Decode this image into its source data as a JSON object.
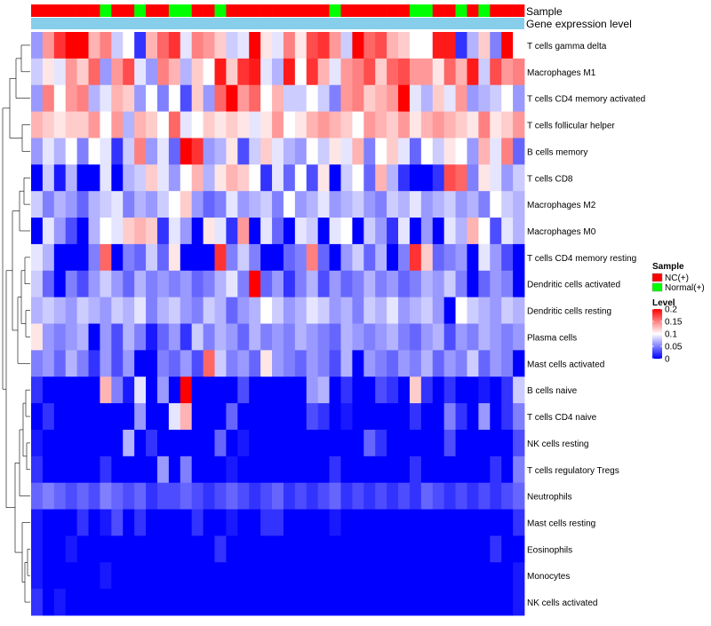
{
  "chart_data": {
    "type": "heatmap",
    "title": "",
    "annotations": {
      "sample_label": "Sample",
      "gene_label": "Gene expression level",
      "sample_groups": [
        "NC(+)",
        "NC(+)",
        "NC(+)",
        "NC(+)",
        "NC(+)",
        "NC(+)",
        "Normal(+)",
        "NC(+)",
        "NC(+)",
        "Normal(+)",
        "NC(+)",
        "NC(+)",
        "Normal(+)",
        "Normal(+)",
        "NC(+)",
        "NC(+)",
        "Normal(+)",
        "NC(+)",
        "NC(+)",
        "NC(+)",
        "NC(+)",
        "NC(+)",
        "NC(+)",
        "NC(+)",
        "NC(+)",
        "NC(+)",
        "Normal(+)",
        "NC(+)",
        "NC(+)",
        "NC(+)",
        "NC(+)",
        "NC(+)",
        "NC(+)",
        "Normal(+)",
        "Normal(+)",
        "NC(+)",
        "NC(+)",
        "Normal(+)",
        "NC(+)",
        "Normal(+)",
        "NC(+)",
        "NC(+)",
        "NC(+)"
      ],
      "gene_group_color": "#87CEEB"
    },
    "rows": [
      "T cells gamma delta",
      "Macrophages M1",
      "T cells CD4 memory activated",
      "T cells follicular helper",
      "B cells memory",
      "T cells CD8",
      "Macrophages M2",
      "Macrophages M0",
      "T cells CD4 memory resting",
      "Dendritic cells activated",
      "Dendritic cells resting",
      "Plasma cells",
      "Mast cells activated",
      "B cells naive",
      "T cells CD4 naive",
      "NK cells resting",
      "T cells regulatory  Tregs",
      "Neutrophils",
      "Mast cells resting",
      "Eosinophils",
      "Monocytes",
      "NK cells activated"
    ],
    "n_columns": 43,
    "values": [
      [
        0.06,
        0.14,
        0.18,
        0.2,
        0.2,
        0.13,
        0.15,
        0.08,
        0.1,
        0.02,
        0.13,
        0.16,
        0.18,
        0.09,
        0.15,
        0.14,
        0.12,
        0.08,
        0.09,
        0.2,
        0.11,
        0.09,
        0.15,
        0.11,
        0.17,
        0.18,
        0.14,
        0.08,
        0.2,
        0.16,
        0.17,
        0.13,
        0.12,
        0.1,
        0.1,
        0.19,
        0.19,
        0.02,
        0.07,
        0.12,
        0.05,
        0.2,
        0.1
      ],
      [
        0.08,
        0.11,
        0.09,
        0.14,
        0.12,
        0.16,
        0.06,
        0.14,
        0.17,
        0.09,
        0.06,
        0.15,
        0.13,
        0.07,
        0.12,
        0.1,
        0.19,
        0.12,
        0.18,
        0.19,
        0.09,
        0.07,
        0.19,
        0.1,
        0.18,
        0.13,
        0.09,
        0.14,
        0.15,
        0.17,
        0.12,
        0.16,
        0.17,
        0.14,
        0.14,
        0.11,
        0.16,
        0.13,
        0.19,
        0.08,
        0.17,
        0.14,
        0.15
      ],
      [
        0.06,
        0.15,
        0.1,
        0.14,
        0.15,
        0.07,
        0.09,
        0.13,
        0.12,
        0.06,
        0.1,
        0.05,
        0.1,
        0.03,
        0.12,
        0.06,
        0.16,
        0.2,
        0.14,
        0.16,
        0.1,
        0.13,
        0.08,
        0.08,
        0.1,
        0.08,
        0.05,
        0.14,
        0.15,
        0.12,
        0.13,
        0.14,
        0.2,
        0.09,
        0.07,
        0.12,
        0.09,
        0.14,
        0.06,
        0.07,
        0.08,
        0.1,
        0.06
      ],
      [
        0.13,
        0.12,
        0.11,
        0.12,
        0.12,
        0.14,
        0.1,
        0.14,
        0.07,
        0.13,
        0.12,
        0.1,
        0.16,
        0.09,
        0.1,
        0.12,
        0.11,
        0.12,
        0.11,
        0.09,
        0.11,
        0.14,
        0.1,
        0.11,
        0.13,
        0.14,
        0.13,
        0.12,
        0.1,
        0.14,
        0.13,
        0.12,
        0.14,
        0.11,
        0.13,
        0.14,
        0.13,
        0.12,
        0.11,
        0.15,
        0.11,
        0.12,
        0.14
      ],
      [
        0.06,
        0.09,
        0.07,
        0.1,
        0.05,
        0.1,
        0.09,
        0.02,
        0.08,
        0.15,
        0.06,
        0.09,
        0.04,
        0.2,
        0.18,
        0.06,
        0.07,
        0.11,
        0.03,
        0.08,
        0.12,
        0.09,
        0.07,
        0.06,
        0.1,
        0.08,
        0.11,
        0.09,
        0.13,
        0.05,
        0.1,
        0.12,
        0.09,
        0.04,
        0.1,
        0.08,
        0.11,
        0.1,
        0.06,
        0.13,
        0.09,
        0.15,
        0.04
      ],
      [
        0.0,
        0.08,
        0.01,
        0.07,
        0.0,
        0.0,
        0.09,
        0.0,
        0.07,
        0.08,
        0.12,
        0.09,
        0.06,
        0.1,
        0.13,
        0.07,
        0.11,
        0.13,
        0.12,
        0.1,
        0.02,
        0.09,
        0.04,
        0.1,
        0.03,
        0.11,
        0.0,
        0.08,
        0.1,
        0.04,
        0.13,
        0.07,
        0.02,
        0.0,
        0.0,
        0.02,
        0.17,
        0.16,
        0.05,
        0.11,
        0.09,
        0.06,
        0.08
      ],
      [
        0.08,
        0.05,
        0.07,
        0.06,
        0.04,
        0.07,
        0.08,
        0.09,
        0.05,
        0.07,
        0.06,
        0.08,
        0.1,
        0.12,
        0.06,
        0.04,
        0.05,
        0.09,
        0.06,
        0.07,
        0.08,
        0.05,
        0.1,
        0.06,
        0.07,
        0.09,
        0.06,
        0.07,
        0.08,
        0.06,
        0.05,
        0.08,
        0.07,
        0.09,
        0.06,
        0.07,
        0.08,
        0.06,
        0.07,
        0.05,
        0.1,
        0.08,
        0.07
      ],
      [
        0.0,
        0.09,
        0.06,
        0.03,
        0.0,
        0.07,
        0.1,
        0.09,
        0.12,
        0.13,
        0.12,
        0.02,
        0.09,
        0.06,
        0.0,
        0.11,
        0.09,
        0.02,
        0.14,
        0.0,
        0.09,
        0.04,
        0.0,
        0.09,
        0.08,
        0.0,
        0.09,
        0.1,
        0.0,
        0.08,
        0.06,
        0.02,
        0.09,
        0.0,
        0.06,
        0.0,
        0.09,
        0.07,
        0.13,
        0.1,
        0.03,
        0.09,
        0.07
      ],
      [
        0.09,
        0.07,
        0.0,
        0.0,
        0.0,
        0.05,
        0.16,
        0.0,
        0.05,
        0.04,
        0.08,
        0.04,
        0.11,
        0.0,
        0.0,
        0.0,
        0.18,
        0.05,
        0.08,
        0.05,
        0.0,
        0.0,
        0.04,
        0.05,
        0.15,
        0.04,
        0.0,
        0.06,
        0.08,
        0.04,
        0.07,
        0.0,
        0.05,
        0.18,
        0.12,
        0.04,
        0.05,
        0.06,
        0.0,
        0.09,
        0.06,
        0.03,
        0.0
      ],
      [
        0.08,
        0.04,
        0.0,
        0.05,
        0.03,
        0.06,
        0.08,
        0.06,
        0.04,
        0.07,
        0.05,
        0.06,
        0.05,
        0.06,
        0.04,
        0.05,
        0.07,
        0.09,
        0.05,
        0.2,
        0.04,
        0.06,
        0.02,
        0.05,
        0.07,
        0.03,
        0.06,
        0.04,
        0.05,
        0.07,
        0.05,
        0.06,
        0.04,
        0.05,
        0.07,
        0.06,
        0.08,
        0.05,
        0.0,
        0.04,
        0.06,
        0.05,
        0.0
      ],
      [
        0.07,
        0.08,
        0.07,
        0.06,
        0.08,
        0.07,
        0.06,
        0.08,
        0.07,
        0.09,
        0.05,
        0.07,
        0.08,
        0.06,
        0.05,
        0.08,
        0.07,
        0.04,
        0.06,
        0.07,
        0.1,
        0.08,
        0.06,
        0.07,
        0.09,
        0.08,
        0.06,
        0.07,
        0.05,
        0.08,
        0.07,
        0.09,
        0.06,
        0.07,
        0.08,
        0.06,
        0.0,
        0.1,
        0.08,
        0.07,
        0.06,
        0.08,
        0.07
      ],
      [
        0.11,
        0.06,
        0.05,
        0.06,
        0.07,
        0.0,
        0.06,
        0.03,
        0.07,
        0.05,
        0.01,
        0.04,
        0.06,
        0.02,
        0.08,
        0.05,
        0.07,
        0.06,
        0.04,
        0.07,
        0.05,
        0.06,
        0.05,
        0.07,
        0.06,
        0.05,
        0.04,
        0.07,
        0.06,
        0.05,
        0.06,
        0.07,
        0.05,
        0.04,
        0.06,
        0.07,
        0.03,
        0.06,
        0.05,
        0.07,
        0.06,
        0.05,
        0.06
      ],
      [
        0.05,
        0.06,
        0.04,
        0.07,
        0.05,
        0.02,
        0.06,
        0.03,
        0.06,
        0.0,
        0.0,
        0.05,
        0.04,
        0.06,
        0.03,
        0.16,
        0.08,
        0.05,
        0.06,
        0.04,
        0.11,
        0.06,
        0.05,
        0.04,
        0.06,
        0.05,
        0.03,
        0.07,
        0.0,
        0.06,
        0.05,
        0.04,
        0.06,
        0.05,
        0.07,
        0.04,
        0.06,
        0.05,
        0.08,
        0.04,
        0.06,
        0.05,
        0.0
      ],
      [
        0.02,
        0.0,
        0.0,
        0.0,
        0.0,
        0.0,
        0.13,
        0.05,
        0.01,
        0.09,
        0.0,
        0.06,
        0.0,
        0.2,
        0.0,
        0.0,
        0.0,
        0.0,
        0.03,
        0.0,
        0.0,
        0.0,
        0.0,
        0.0,
        0.06,
        0.07,
        0.0,
        0.02,
        0.0,
        0.0,
        0.03,
        0.02,
        0.0,
        0.12,
        0.02,
        0.0,
        0.02,
        0.0,
        0.0,
        0.01,
        0.0,
        0.02,
        0.08
      ],
      [
        0.0,
        0.02,
        0.0,
        0.0,
        0.0,
        0.0,
        0.0,
        0.0,
        0.0,
        0.06,
        0.0,
        0.0,
        0.09,
        0.13,
        0.0,
        0.0,
        0.0,
        0.04,
        0.0,
        0.0,
        0.0,
        0.0,
        0.0,
        0.0,
        0.03,
        0.02,
        0.0,
        0.01,
        0.0,
        0.0,
        0.0,
        0.0,
        0.0,
        0.02,
        0.0,
        0.0,
        0.05,
        0.02,
        0.0,
        0.06,
        0.0,
        0.02,
        0.05
      ],
      [
        0.01,
        0.0,
        0.0,
        0.0,
        0.0,
        0.0,
        0.0,
        0.0,
        0.07,
        0.0,
        0.02,
        0.0,
        0.0,
        0.0,
        0.0,
        0.0,
        0.04,
        0.0,
        0.01,
        0.0,
        0.0,
        0.0,
        0.0,
        0.0,
        0.0,
        0.0,
        0.0,
        0.0,
        0.0,
        0.04,
        0.02,
        0.0,
        0.0,
        0.0,
        0.0,
        0.0,
        0.03,
        0.0,
        0.0,
        0.0,
        0.0,
        0.0,
        0.03
      ],
      [
        0.02,
        0.0,
        0.0,
        0.0,
        0.0,
        0.0,
        0.02,
        0.0,
        0.0,
        0.0,
        0.0,
        0.06,
        0.0,
        0.05,
        0.0,
        0.0,
        0.0,
        0.01,
        0.0,
        0.0,
        0.0,
        0.0,
        0.0,
        0.0,
        0.0,
        0.0,
        0.02,
        0.0,
        0.0,
        0.0,
        0.0,
        0.0,
        0.0,
        0.02,
        0.0,
        0.0,
        0.0,
        0.0,
        0.0,
        0.0,
        0.02,
        0.0,
        0.05
      ],
      [
        0.04,
        0.05,
        0.04,
        0.03,
        0.04,
        0.03,
        0.05,
        0.04,
        0.03,
        0.04,
        0.02,
        0.03,
        0.03,
        0.04,
        0.03,
        0.02,
        0.03,
        0.04,
        0.03,
        0.02,
        0.03,
        0.04,
        0.02,
        0.03,
        0.02,
        0.03,
        0.04,
        0.02,
        0.03,
        0.02,
        0.03,
        0.02,
        0.03,
        0.02,
        0.04,
        0.03,
        0.02,
        0.03,
        0.02,
        0.03,
        0.02,
        0.03,
        0.04
      ],
      [
        0.01,
        0.0,
        0.0,
        0.0,
        0.02,
        0.0,
        0.01,
        0.03,
        0.0,
        0.02,
        0.0,
        0.0,
        0.0,
        0.0,
        0.02,
        0.0,
        0.0,
        0.01,
        0.0,
        0.0,
        0.02,
        0.02,
        0.0,
        0.0,
        0.0,
        0.0,
        0.01,
        0.0,
        0.0,
        0.0,
        0.0,
        0.0,
        0.0,
        0.0,
        0.0,
        0.0,
        0.0,
        0.0,
        0.0,
        0.0,
        0.0,
        0.0,
        0.02
      ],
      [
        0.01,
        0.0,
        0.0,
        0.01,
        0.0,
        0.0,
        0.0,
        0.0,
        0.0,
        0.0,
        0.0,
        0.0,
        0.0,
        0.0,
        0.0,
        0.0,
        0.02,
        0.0,
        0.0,
        0.0,
        0.0,
        0.0,
        0.0,
        0.0,
        0.0,
        0.0,
        0.0,
        0.0,
        0.0,
        0.0,
        0.0,
        0.0,
        0.0,
        0.0,
        0.0,
        0.0,
        0.0,
        0.0,
        0.0,
        0.0,
        0.02,
        0.0,
        0.0
      ],
      [
        0.01,
        0.0,
        0.0,
        0.0,
        0.0,
        0.0,
        0.01,
        0.0,
        0.0,
        0.0,
        0.0,
        0.0,
        0.0,
        0.0,
        0.0,
        0.0,
        0.0,
        0.0,
        0.0,
        0.0,
        0.0,
        0.0,
        0.0,
        0.0,
        0.0,
        0.0,
        0.0,
        0.0,
        0.0,
        0.0,
        0.0,
        0.0,
        0.0,
        0.0,
        0.0,
        0.0,
        0.0,
        0.0,
        0.0,
        0.0,
        0.0,
        0.0,
        0.01
      ],
      [
        0.02,
        0.0,
        0.01,
        0.0,
        0.0,
        0.0,
        0.0,
        0.0,
        0.0,
        0.0,
        0.0,
        0.0,
        0.0,
        0.0,
        0.0,
        0.0,
        0.0,
        0.0,
        0.0,
        0.0,
        0.0,
        0.0,
        0.0,
        0.0,
        0.0,
        0.0,
        0.0,
        0.0,
        0.0,
        0.0,
        0.0,
        0.0,
        0.0,
        0.0,
        0.0,
        0.0,
        0.0,
        0.0,
        0.0,
        0.0,
        0.0,
        0.0,
        0.01
      ]
    ],
    "color_scale": {
      "min": 0,
      "mid": 0.1,
      "max": 0.2,
      "low_color": "#0000FF",
      "mid_color": "#FFFFFF",
      "high_color": "#FF0000"
    },
    "legend": {
      "position": "right",
      "sample_title": "Sample",
      "sample_entries": [
        {
          "label": "NC(+)",
          "color": "#FF0000"
        },
        {
          "label": "Normal(+)",
          "color": "#00FF00"
        }
      ],
      "level_title": "Level",
      "level_ticks": [
        "0.2",
        "0.15",
        "0.1",
        "0.05",
        "0"
      ],
      "level_tick_values": [
        0.2,
        0.15,
        0.1,
        0.05,
        0
      ]
    },
    "row_dendrogram": true
  }
}
